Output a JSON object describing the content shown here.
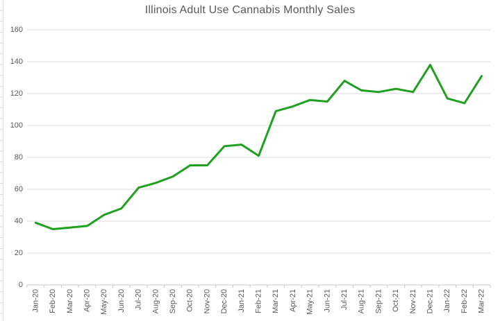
{
  "chart": {
    "title": "Illinois Adult Use Cannabis Monthly Sales"
  },
  "chart_data": {
    "type": "line",
    "title": "Illinois Adult Use Cannabis Monthly Sales",
    "categories": [
      "Jan-20",
      "Feb-20",
      "Mar-20",
      "Apr-20",
      "May-20",
      "Jun-20",
      "Jul-20",
      "Aug-20",
      "Sep-20",
      "Oct-20",
      "Nov-20",
      "Dec-20",
      "Jan-21",
      "Feb-21",
      "Mar-21",
      "Apr-21",
      "May-21",
      "Jun-21",
      "Jul-21",
      "Aug-21",
      "Sep-21",
      "Oct-21",
      "Nov-21",
      "Dec-21",
      "Jan-22",
      "Feb-22",
      "Mar-22"
    ],
    "values": [
      39,
      35,
      36,
      37,
      44,
      48,
      61,
      64,
      68,
      75,
      75,
      87,
      88,
      81,
      109,
      112,
      116,
      115,
      128,
      122,
      121,
      123,
      121,
      138,
      117,
      114,
      131
    ],
    "xlabel": "",
    "ylabel": "",
    "ylim": [
      0,
      160
    ],
    "yticks": [
      0,
      20,
      40,
      60,
      80,
      100,
      120,
      140,
      160
    ],
    "grid": true,
    "legend": false,
    "line_color": "#1fa01f",
    "gridline_color": "#d9d9d9",
    "axis_color": "#c9c9c9",
    "label_color": "#595959",
    "title_color": "#595959"
  }
}
